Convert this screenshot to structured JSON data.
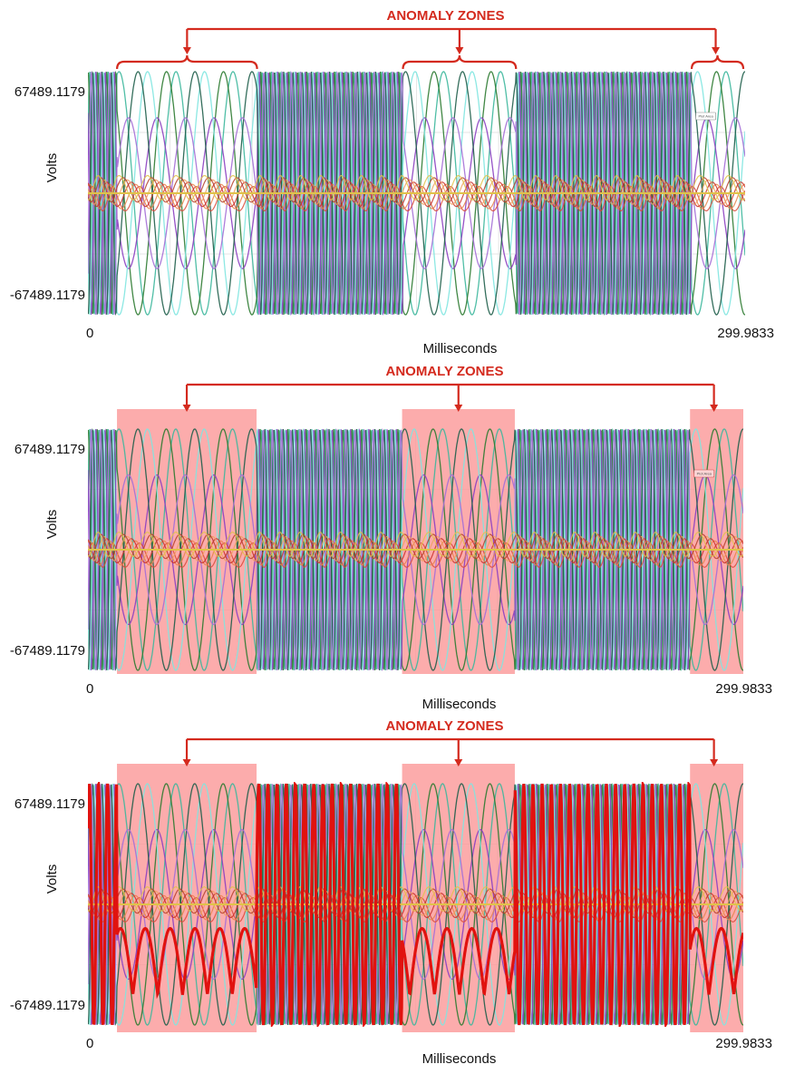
{
  "colors": {
    "annotation": "#d42a1e",
    "zone_fill": "#fb9797",
    "zone_opacity": 0.8,
    "highlight": "#e1120f",
    "grid": "#e6e6e6",
    "wave_colors": [
      "#3cb79c",
      "#2b7a30",
      "#8b3fc1",
      "#7fe6e0",
      "#1e5e4a",
      "#a46fd6"
    ],
    "ripple_colors": [
      "#d94a3a",
      "#e6834a",
      "#c9302c",
      "#f0a060",
      "#b5402a",
      "#e0c24a"
    ]
  },
  "chart_data": [
    {
      "type": "line",
      "panel": 1,
      "title": "ANOMALY ZONES",
      "xlabel": "Milliseconds",
      "ylabel": "Volts",
      "x_tick_labels": [
        "0",
        "299.9833"
      ],
      "y_tick_labels": [
        "67489.1179",
        "-67489.1179"
      ],
      "xlim": [
        0,
        299.9833
      ],
      "ylim": [
        -67489.1179,
        67489.1179
      ],
      "anomaly_zones_ms": [
        [
          13.3,
          77.2
        ],
        [
          143.8,
          195.4
        ],
        [
          275.6,
          299.9833
        ]
      ],
      "zones_shaded": false,
      "highlight_series": false,
      "plot_area_button": "Plot Area",
      "normal_cycle_ms": 4.2,
      "anomaly_cycle_ms": 26,
      "large_amplitude": 67489.1179,
      "ripple_amplitude_fraction": 0.1
    },
    {
      "type": "line",
      "panel": 2,
      "title": "ANOMALY ZONES",
      "xlabel": "Milliseconds",
      "ylabel": "Volts",
      "x_tick_labels": [
        "0",
        "299.9833"
      ],
      "y_tick_labels": [
        "67489.1179",
        "-67489.1179"
      ],
      "xlim": [
        0,
        299.9833
      ],
      "ylim": [
        -67489.1179,
        67489.1179
      ],
      "anomaly_zones_ms": [
        [
          13.3,
          77.2
        ],
        [
          143.8,
          195.4
        ],
        [
          275.6,
          299.9833
        ]
      ],
      "zones_shaded": true,
      "highlight_series": false,
      "plot_area_button": "Plot Area",
      "normal_cycle_ms": 4.2,
      "anomaly_cycle_ms": 26,
      "large_amplitude": 67489.1179,
      "ripple_amplitude_fraction": 0.1
    },
    {
      "type": "line",
      "panel": 3,
      "title": "ANOMALY ZONES",
      "xlabel": "Milliseconds",
      "ylabel": "Volts",
      "x_tick_labels": [
        "0",
        "299.9833"
      ],
      "y_tick_labels": [
        "67489.1179",
        "-67489.1179"
      ],
      "xlim": [
        0,
        299.9833
      ],
      "ylim": [
        -67489.1179,
        67489.1179
      ],
      "anomaly_zones_ms": [
        [
          13.3,
          77.2
        ],
        [
          143.8,
          195.4
        ],
        [
          275.6,
          299.9833
        ]
      ],
      "zones_shaded": true,
      "highlight_series": true,
      "plot_area_button": "",
      "normal_cycle_ms": 4.2,
      "anomaly_cycle_ms": 26,
      "large_amplitude": 67489.1179,
      "ripple_amplitude_fraction": 0.1
    }
  ]
}
